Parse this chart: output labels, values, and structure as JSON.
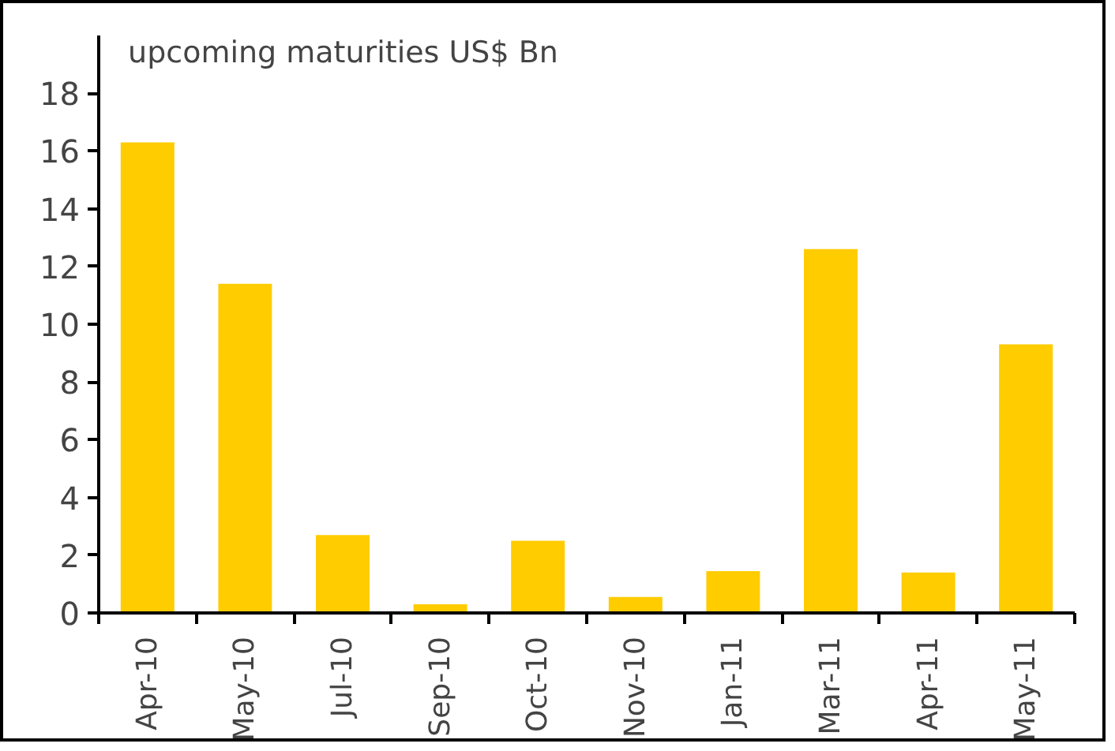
{
  "chart_data": {
    "type": "bar",
    "title": "upcoming maturities US$ Bn",
    "categories": [
      "Apr-10",
      "May-10",
      "Jul-10",
      "Sep-10",
      "Oct-10",
      "Nov-10",
      "Jan-11",
      "Mar-11",
      "Apr-11",
      "May-11"
    ],
    "values": [
      16.3,
      11.4,
      2.7,
      0.3,
      2.5,
      0.55,
      1.45,
      12.6,
      1.4,
      9.3
    ],
    "color": "#ffcc00",
    "ylim": [
      0,
      20
    ],
    "yticks": [
      0,
      2,
      4,
      6,
      8,
      10,
      12,
      14,
      16,
      18
    ],
    "grid": false
  }
}
